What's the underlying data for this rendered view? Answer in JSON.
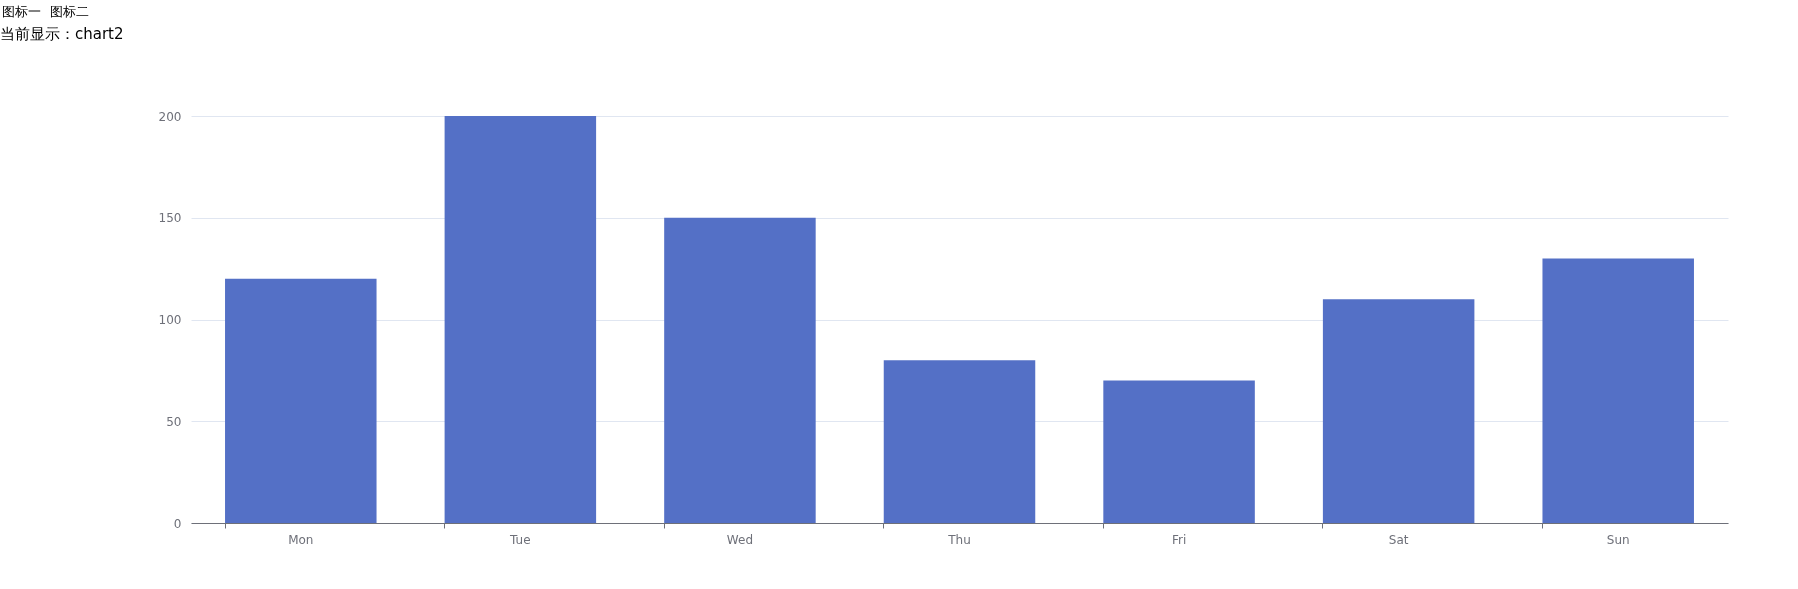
{
  "chart_data": {
    "type": "bar",
    "categories": [
      "Mon",
      "Tue",
      "Wed",
      "Thu",
      "Fri",
      "Sat",
      "Sun"
    ],
    "values": [
      120,
      200,
      150,
      80,
      70,
      110,
      130
    ],
    "color": "#5470c6",
    "ylim": [
      0,
      200
    ],
    "yticks": [
      0,
      50,
      100,
      150,
      200
    ],
    "grid": "y",
    "annotations": [
      "图标一",
      "图标二",
      "当前显示：chart2"
    ]
  }
}
